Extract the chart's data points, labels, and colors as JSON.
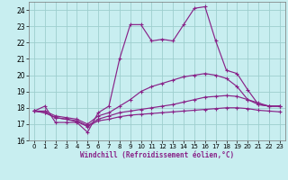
{
  "xlabel": "Windchill (Refroidissement éolien,°C)",
  "bg_color": "#c8eef0",
  "grid_color": "#9ecece",
  "line_color": "#882288",
  "xlim": [
    -0.5,
    23.5
  ],
  "ylim": [
    16,
    24.5
  ],
  "xticks": [
    0,
    1,
    2,
    3,
    4,
    5,
    6,
    7,
    8,
    9,
    10,
    11,
    12,
    13,
    14,
    15,
    16,
    17,
    18,
    19,
    20,
    21,
    22,
    23
  ],
  "yticks": [
    16,
    17,
    18,
    19,
    20,
    21,
    22,
    23,
    24
  ],
  "line1_x": [
    0,
    1,
    2,
    3,
    4,
    5,
    6,
    7,
    8,
    9,
    10,
    11,
    12,
    13,
    14,
    15,
    16,
    17,
    18,
    19,
    20,
    21,
    22,
    23
  ],
  "line1_y": [
    17.8,
    18.1,
    17.1,
    17.1,
    17.1,
    16.5,
    17.7,
    18.1,
    21.0,
    23.1,
    23.1,
    22.1,
    22.2,
    22.1,
    23.1,
    24.1,
    24.2,
    22.1,
    20.3,
    20.1,
    19.1,
    18.2,
    18.1,
    18.1
  ],
  "line2_x": [
    0,
    1,
    2,
    3,
    4,
    5,
    6,
    7,
    8,
    9,
    10,
    11,
    12,
    13,
    14,
    15,
    16,
    17,
    18,
    19,
    20,
    21,
    22,
    23
  ],
  "line2_y": [
    17.8,
    17.8,
    17.5,
    17.4,
    17.3,
    17.0,
    17.5,
    17.7,
    18.1,
    18.5,
    19.0,
    19.3,
    19.5,
    19.7,
    19.9,
    20.0,
    20.1,
    20.0,
    19.8,
    19.3,
    18.5,
    18.2,
    18.1,
    18.1
  ],
  "line3_x": [
    0,
    1,
    2,
    3,
    4,
    5,
    6,
    7,
    8,
    9,
    10,
    11,
    12,
    13,
    14,
    15,
    16,
    17,
    18,
    19,
    20,
    21,
    22,
    23
  ],
  "line3_y": [
    17.8,
    17.7,
    17.4,
    17.3,
    17.2,
    16.9,
    17.3,
    17.5,
    17.7,
    17.8,
    17.9,
    18.0,
    18.1,
    18.2,
    18.35,
    18.5,
    18.65,
    18.7,
    18.75,
    18.7,
    18.5,
    18.3,
    18.1,
    18.1
  ],
  "line4_x": [
    0,
    1,
    2,
    3,
    4,
    5,
    6,
    7,
    8,
    9,
    10,
    11,
    12,
    13,
    14,
    15,
    16,
    17,
    18,
    19,
    20,
    21,
    22,
    23
  ],
  "line4_y": [
    17.8,
    17.7,
    17.4,
    17.3,
    17.15,
    16.85,
    17.2,
    17.3,
    17.45,
    17.55,
    17.6,
    17.65,
    17.7,
    17.75,
    17.8,
    17.85,
    17.9,
    17.95,
    18.0,
    18.0,
    17.95,
    17.85,
    17.8,
    17.75
  ]
}
